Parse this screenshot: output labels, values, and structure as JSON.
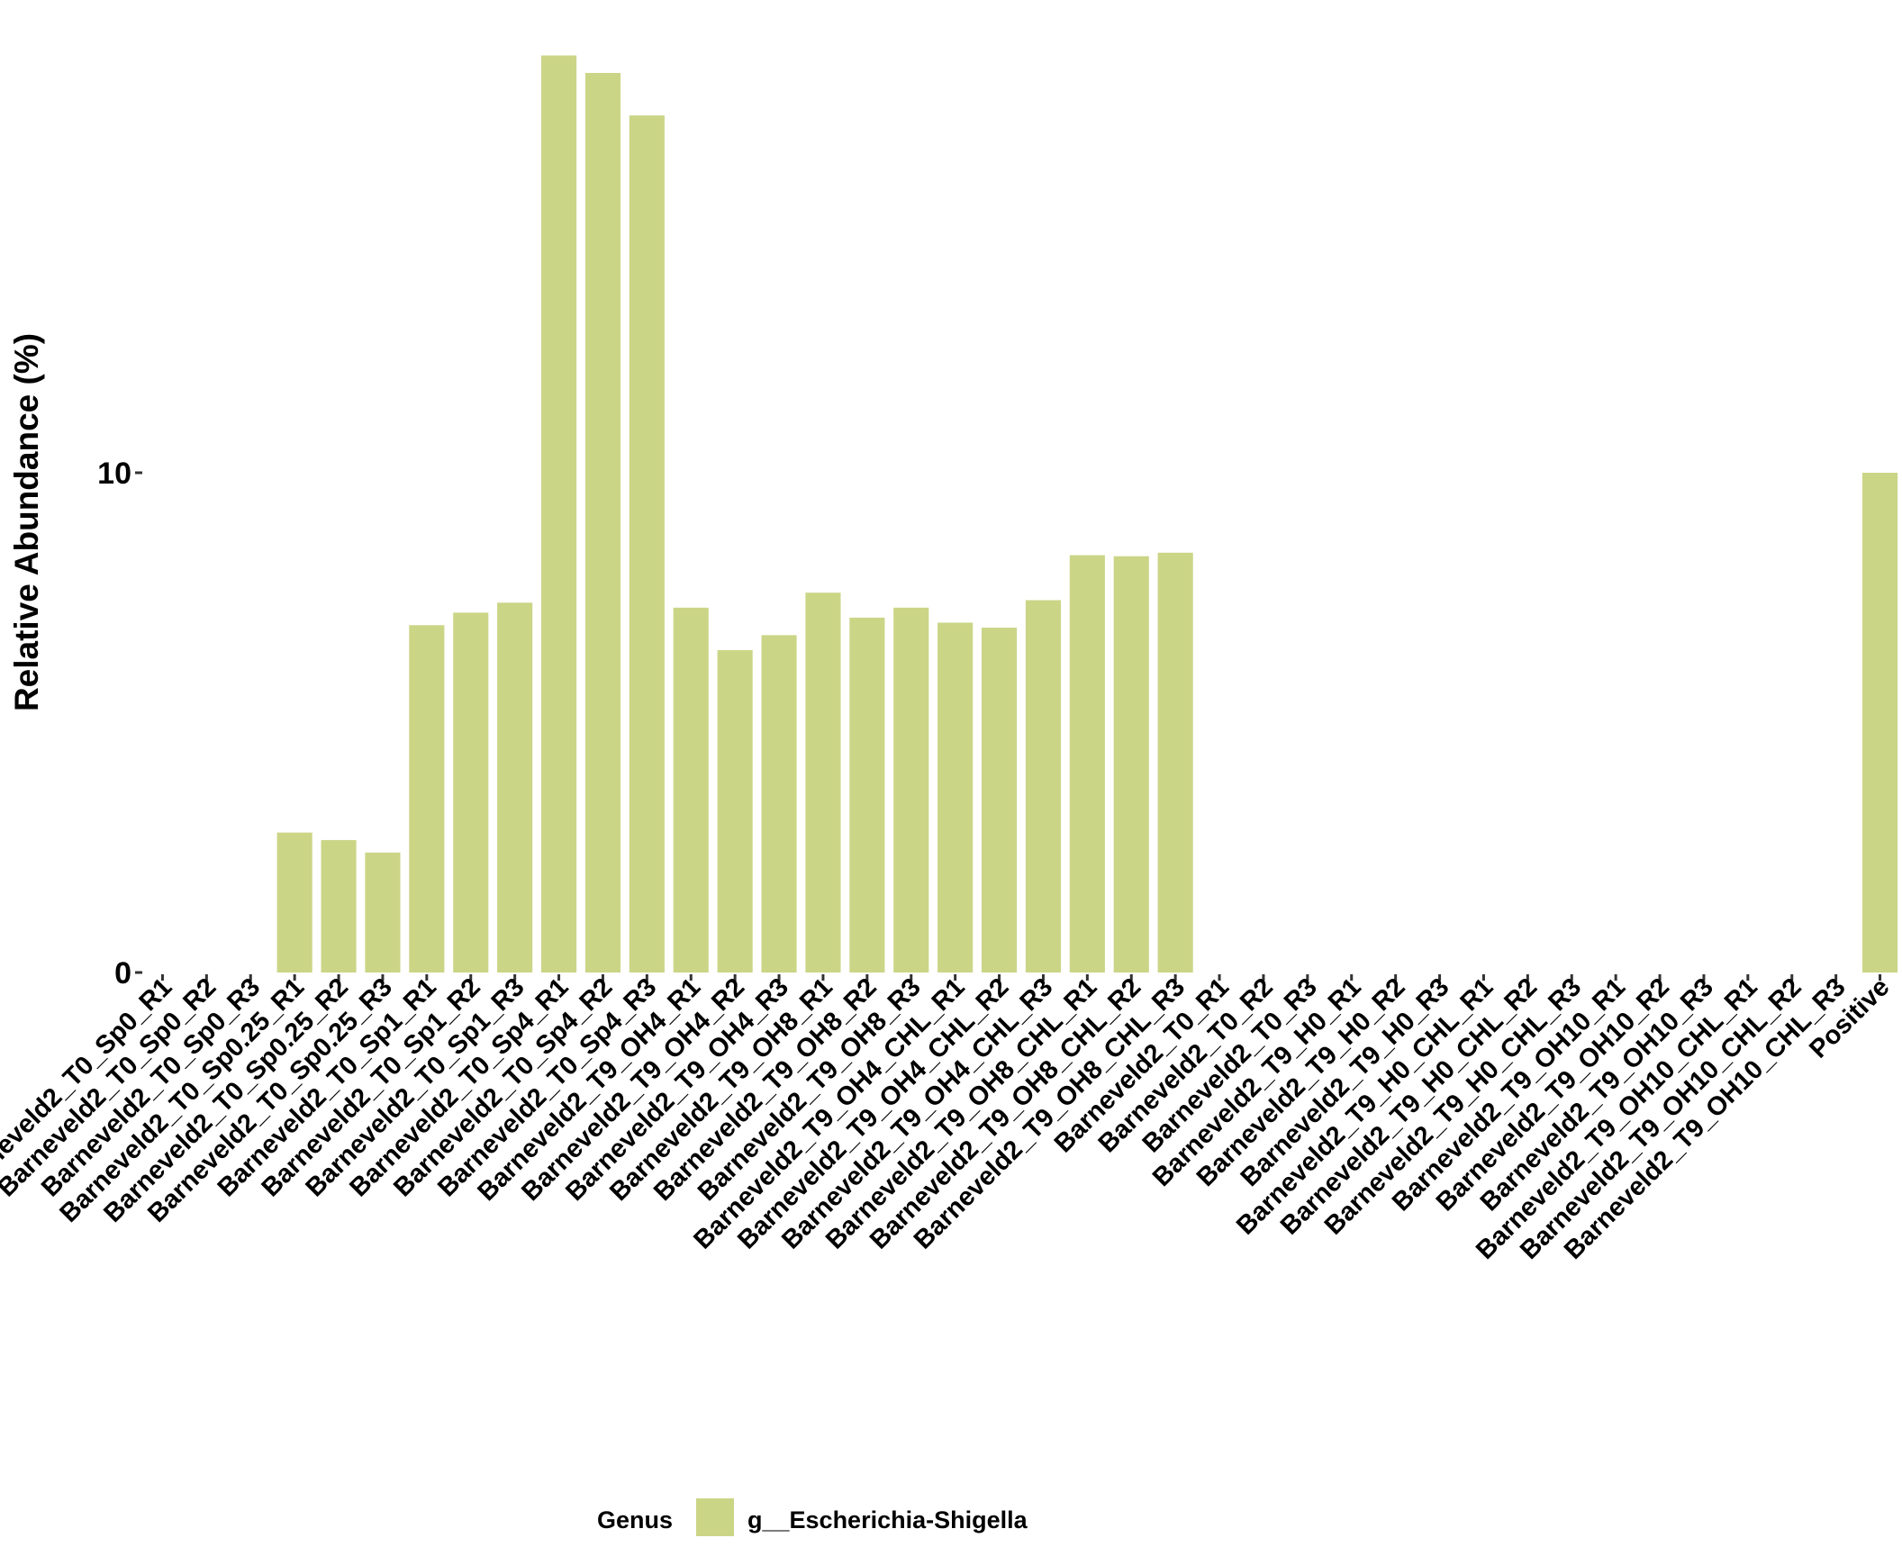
{
  "chart_data": {
    "type": "bar",
    "title": "",
    "xlabel": "",
    "ylabel": "Relative Abundance (%)",
    "ylim": [
      0,
      18.4
    ],
    "yticks": [
      0,
      10
    ],
    "grid": false,
    "legend_position": "bottom",
    "legend_title": "Genus",
    "bar_color": "#cbd586",
    "categories": [
      "Barneveld2_T0_Sp0_R1",
      "Barneveld2_T0_Sp0_R2",
      "Barneveld2_T0_Sp0_R3",
      "Barneveld2_T0_Sp0.25_R1",
      "Barneveld2_T0_Sp0.25_R2",
      "Barneveld2_T0_Sp0.25_R3",
      "Barneveld2_T0_Sp1_R1",
      "Barneveld2_T0_Sp1_R2",
      "Barneveld2_T0_Sp1_R3",
      "Barneveld2_T0_Sp4_R1",
      "Barneveld2_T0_Sp4_R2",
      "Barneveld2_T0_Sp4_R3",
      "Barneveld2_T9_OH4_R1",
      "Barneveld2_T9_OH4_R2",
      "Barneveld2_T9_OH4_R3",
      "Barneveld2_T9_OH8_R1",
      "Barneveld2_T9_OH8_R2",
      "Barneveld2_T9_OH8_R3",
      "Barneveld2_T9_OH4_CHL_R1",
      "Barneveld2_T9_OH4_CHL_R2",
      "Barneveld2_T9_OH4_CHL_R3",
      "Barneveld2_T9_OH8_CHL_R1",
      "Barneveld2_T9_OH8_CHL_R2",
      "Barneveld2_T9_OH8_CHL_R3",
      "Barneveld2_T0_R1",
      "Barneveld2_T0_R2",
      "Barneveld2_T0_R3",
      "Barneveld2_T9_H0_R1",
      "Barneveld2_T9_H0_R2",
      "Barneveld2_T9_H0_R3",
      "Barneveld2_T9_H0_CHL_R1",
      "Barneveld2_T9_H0_CHL_R2",
      "Barneveld2_T9_H0_CHL_R3",
      "Barneveld2_T9_OH10_R1",
      "Barneveld2_T9_OH10_R2",
      "Barneveld2_T9_OH10_R3",
      "Barneveld2_T9_OH10_CHL_R1",
      "Barneveld2_T9_OH10_CHL_R2",
      "Barneveld2_T9_OH10_CHL_R3",
      "Positive"
    ],
    "series": [
      {
        "name": "g__Escherichia-Shigella",
        "values": [
          0,
          0,
          0,
          2.8,
          2.65,
          2.4,
          6.95,
          7.2,
          7.4,
          18.35,
          18.0,
          17.15,
          7.3,
          6.45,
          6.75,
          7.6,
          7.1,
          7.3,
          7.0,
          6.9,
          7.45,
          8.35,
          8.33,
          8.4,
          0,
          0,
          0,
          0,
          0,
          0,
          0,
          0,
          0,
          0,
          0,
          0,
          0,
          0,
          0,
          10.0
        ]
      }
    ]
  }
}
